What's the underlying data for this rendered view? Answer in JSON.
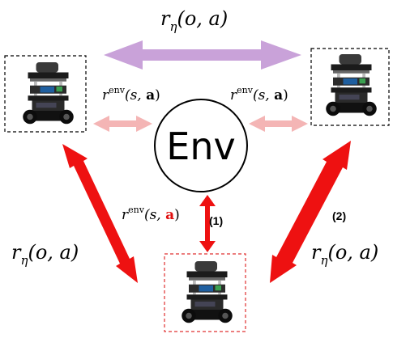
{
  "env": {
    "label": "Env"
  },
  "arrow_labels": {
    "top": {
      "r": "r",
      "sub": "η",
      "args": "(o, a)"
    },
    "left": {
      "r": "r",
      "sub": "η",
      "args": "(o, a)"
    },
    "right": {
      "r": "r",
      "sub": "η",
      "args": "(o, a)"
    }
  },
  "env_rewards": {
    "left": {
      "r": "r",
      "sup": "env",
      "open": "(s, ",
      "bold": "a",
      "close": ")"
    },
    "right": {
      "r": "r",
      "sup": "env",
      "open": "(s, ",
      "bold": "a",
      "close": ")"
    },
    "bottom": {
      "r": "r",
      "sup": "env",
      "open": "(s, ",
      "bold": "a",
      "close": ")"
    }
  },
  "tags": {
    "one": "(1)",
    "two": "(2)"
  },
  "robots": [
    {
      "id": "left",
      "frame": "black-dashed"
    },
    {
      "id": "right",
      "frame": "black-dashed"
    },
    {
      "id": "bottom",
      "frame": "red-dashed"
    }
  ],
  "colors": {
    "top_arrow": "#c9a2d9",
    "env_link": "#f4b5b5",
    "side_arrow": "#ee1111",
    "highlight": "#e01010",
    "robot_frame_red": "#e03030"
  }
}
